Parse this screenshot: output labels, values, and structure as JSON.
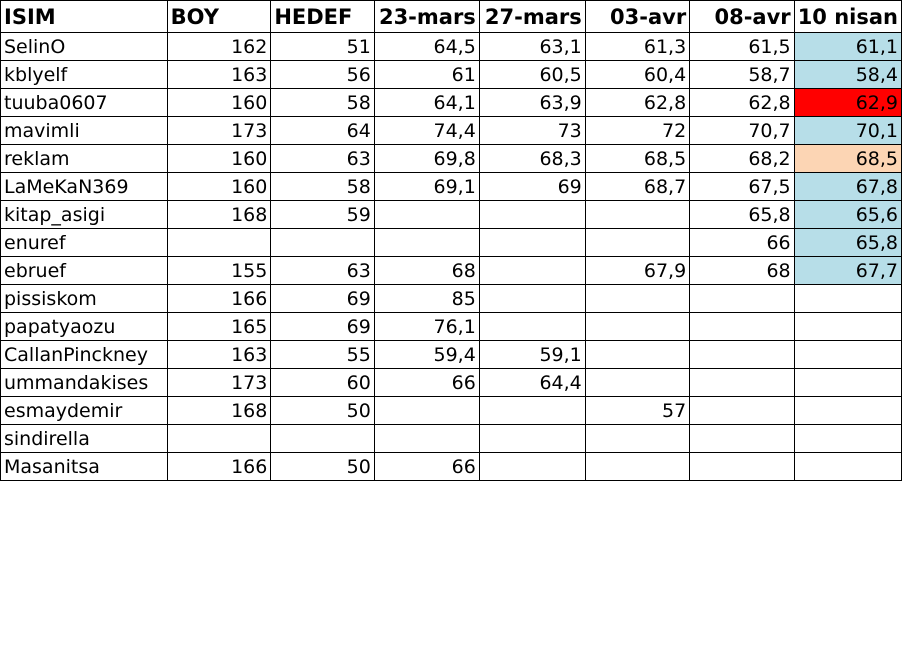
{
  "headers": [
    "ISIM",
    "BOY",
    "HEDEF",
    "23-mars",
    "27-mars",
    "03-avr",
    "08-avr",
    "10 nisan"
  ],
  "colors": {
    "light_blue": "#b7dee8",
    "red": "#ff0000",
    "peach": "#fcd5b4"
  },
  "rows": [
    {
      "cells": [
        "SelinO",
        "162",
        "51",
        "64,5",
        "63,1",
        "61,3",
        "61,5",
        "61,1"
      ],
      "highlight": "light_blue"
    },
    {
      "cells": [
        "kblyelf",
        "163",
        "56",
        "61",
        "60,5",
        "60,4",
        "58,7",
        "58,4"
      ],
      "highlight": "light_blue"
    },
    {
      "cells": [
        "tuuba0607",
        "160",
        "58",
        "64,1",
        "63,9",
        "62,8",
        "62,8",
        "62,9"
      ],
      "highlight": "red"
    },
    {
      "cells": [
        "mavimli",
        "173",
        "64",
        "74,4",
        "73",
        "72",
        "70,7",
        "70,1"
      ],
      "highlight": "light_blue"
    },
    {
      "cells": [
        "reklam",
        "160",
        "63",
        "69,8",
        "68,3",
        "68,5",
        "68,2",
        "68,5"
      ],
      "highlight": "peach"
    },
    {
      "cells": [
        "LaMeKaN369",
        "160",
        "58",
        "69,1",
        "69",
        "68,7",
        "67,5",
        "67,8"
      ],
      "highlight": "light_blue"
    },
    {
      "cells": [
        "kitap_asigi",
        "168",
        "59",
        "",
        "",
        "",
        "65,8",
        "65,6"
      ],
      "highlight": "light_blue"
    },
    {
      "cells": [
        "enuref",
        "",
        "",
        "",
        "",
        "",
        "66",
        "65,8"
      ],
      "highlight": "light_blue"
    },
    {
      "cells": [
        "ebruef",
        "155",
        "63",
        "68",
        "",
        "67,9",
        "68",
        "67,7"
      ],
      "highlight": "light_blue"
    },
    {
      "cells": [
        "pissiskom",
        "166",
        "69",
        "85",
        "",
        "",
        "",
        ""
      ],
      "highlight": ""
    },
    {
      "cells": [
        "papatyaozu",
        "165",
        "69",
        "76,1",
        "",
        "",
        "",
        ""
      ],
      "highlight": ""
    },
    {
      "cells": [
        "CallanPinckney",
        "163",
        "55",
        "59,4",
        "59,1",
        "",
        "",
        ""
      ],
      "highlight": ""
    },
    {
      "cells": [
        "ummandakises",
        "173",
        "60",
        "66",
        "64,4",
        "",
        "",
        ""
      ],
      "highlight": ""
    },
    {
      "cells": [
        "esmaydemir",
        "168",
        "50",
        "",
        "",
        "57",
        "",
        ""
      ],
      "highlight": ""
    },
    {
      "cells": [
        "sindirella",
        "",
        "",
        "",
        "",
        "",
        "",
        ""
      ],
      "highlight": ""
    },
    {
      "cells": [
        "Masanitsa",
        "166",
        "50",
        "66",
        "",
        "",
        "",
        ""
      ],
      "highlight": ""
    }
  ]
}
